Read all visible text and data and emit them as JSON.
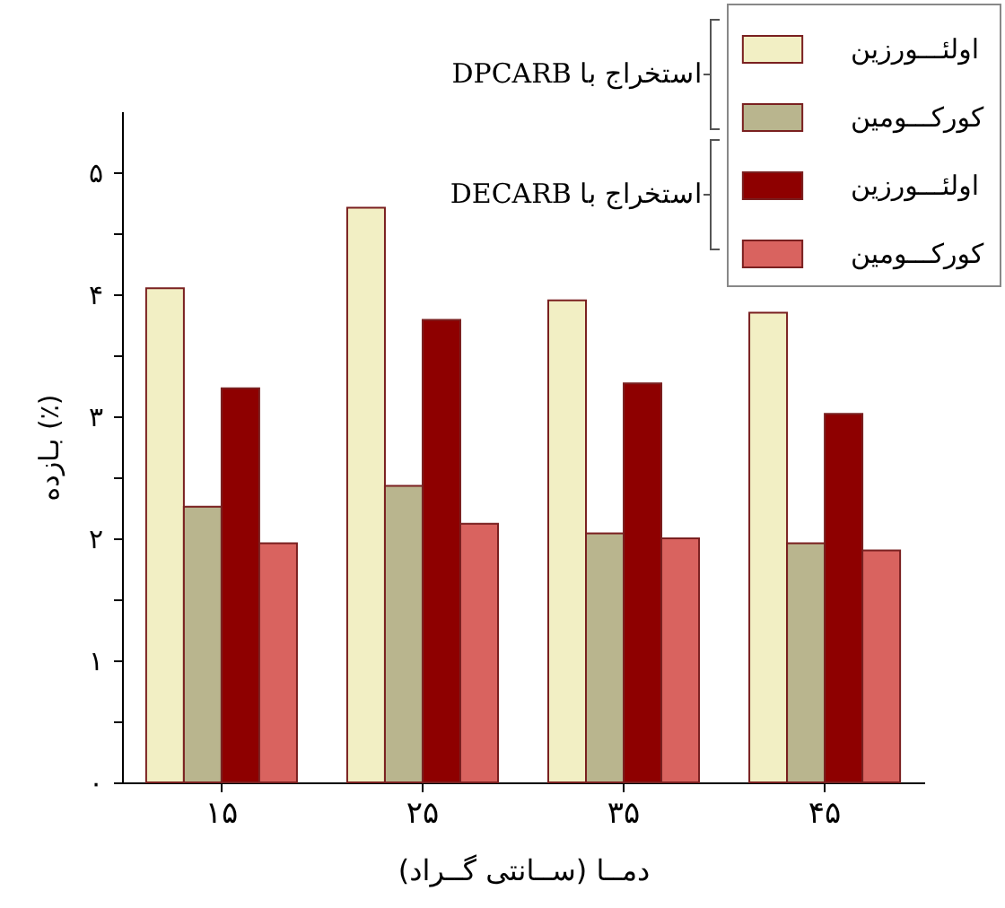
{
  "chart_data": {
    "type": "bar",
    "xlabel": "دمــا (ســانتی گــراد)",
    "ylabel": "بـازده (٪)",
    "categories": [
      "۱۵",
      "۲۵",
      "۳۵",
      "۴۵"
    ],
    "series": [
      {
        "name": "اولئـــورزین",
        "color": "#f2efc4",
        "values": [
          4.05,
          4.71,
          3.95,
          3.85
        ]
      },
      {
        "name": "کورکـــومین",
        "color": "#b9b58e",
        "values": [
          2.26,
          2.43,
          2.04,
          1.96
        ]
      },
      {
        "name": "اولئـــورزین",
        "color": "#8e0000",
        "values": [
          3.23,
          3.79,
          3.27,
          3.02
        ]
      },
      {
        "name": "کورکـــومین",
        "color": "#d9635f",
        "values": [
          1.96,
          2.12,
          2.0,
          1.9
        ]
      }
    ],
    "ylim": [
      0,
      5.5
    ],
    "yticks": [
      {
        "value": 0,
        "label": "۰"
      },
      {
        "value": 0.5,
        "label": null
      },
      {
        "value": 1,
        "label": "۱"
      },
      {
        "value": 1.5,
        "label": null
      },
      {
        "value": 2,
        "label": "۲"
      },
      {
        "value": 2.5,
        "label": null
      },
      {
        "value": 3,
        "label": "۳"
      },
      {
        "value": 3.5,
        "label": null
      },
      {
        "value": 4,
        "label": "۴"
      },
      {
        "value": 4.5,
        "label": null
      },
      {
        "value": 5,
        "label": "۵"
      }
    ],
    "legend": "top right",
    "grid": false,
    "annotations": [
      "استخراج با DPCARB",
      "استخراج با DECARB"
    ]
  }
}
